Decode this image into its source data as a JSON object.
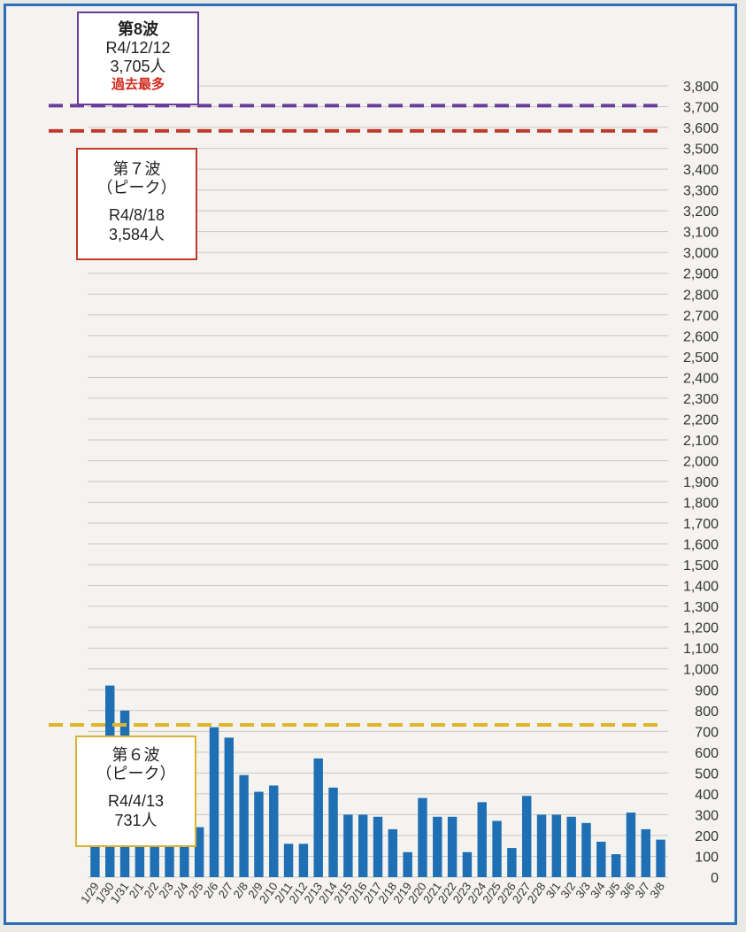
{
  "colors": {
    "bar": "#1f6fb5",
    "frame": "#2a6fb8",
    "wave8_line": "#6a3d9a",
    "wave7_line": "#c0392b",
    "wave6_line": "#e0b52a",
    "peak_red_text": "#d12a1e"
  },
  "annotations": {
    "wave8": {
      "label": "第8波",
      "date": "R4/12/12",
      "count": "3,705人",
      "note": "過去最多"
    },
    "wave7": {
      "label": "第７波",
      "sub": "（ピーク）",
      "date": "R4/8/18",
      "count": "3,584人"
    },
    "wave6": {
      "label": "第６波",
      "sub": "（ピーク）",
      "date": "R4/4/13",
      "count": "731人"
    }
  },
  "chart_data": {
    "type": "bar",
    "title": "",
    "xlabel": "",
    "ylabel": "",
    "ylim": [
      0,
      3800
    ],
    "y_tick_step": 100,
    "y_axis_side": "right",
    "grid": true,
    "categories": [
      "1/29",
      "1/30",
      "1/31",
      "2/1",
      "2/2",
      "2/3",
      "2/4",
      "2/5",
      "2/6",
      "2/7",
      "2/8",
      "2/9",
      "2/10",
      "2/11",
      "2/12",
      "2/13",
      "2/14",
      "2/15",
      "2/16",
      "2/17",
      "2/18",
      "2/19",
      "2/20",
      "2/21",
      "2/22",
      "2/23",
      "2/24",
      "2/25",
      "2/26",
      "2/27",
      "2/28",
      "3/1",
      "3/2",
      "3/3",
      "3/4",
      "3/5",
      "3/6",
      "3/7",
      "3/8"
    ],
    "values": [
      300,
      920,
      800,
      270,
      190,
      220,
      210,
      240,
      720,
      670,
      490,
      410,
      440,
      160,
      160,
      570,
      430,
      300,
      300,
      290,
      230,
      120,
      380,
      290,
      290,
      120,
      360,
      270,
      140,
      390,
      300,
      300,
      290,
      260,
      170,
      110,
      310,
      230,
      180
    ],
    "reference_lines": [
      {
        "name": "第8波",
        "value": 3705
      },
      {
        "name": "第７波",
        "value": 3584
      },
      {
        "name": "第６波",
        "value": 731
      }
    ]
  }
}
